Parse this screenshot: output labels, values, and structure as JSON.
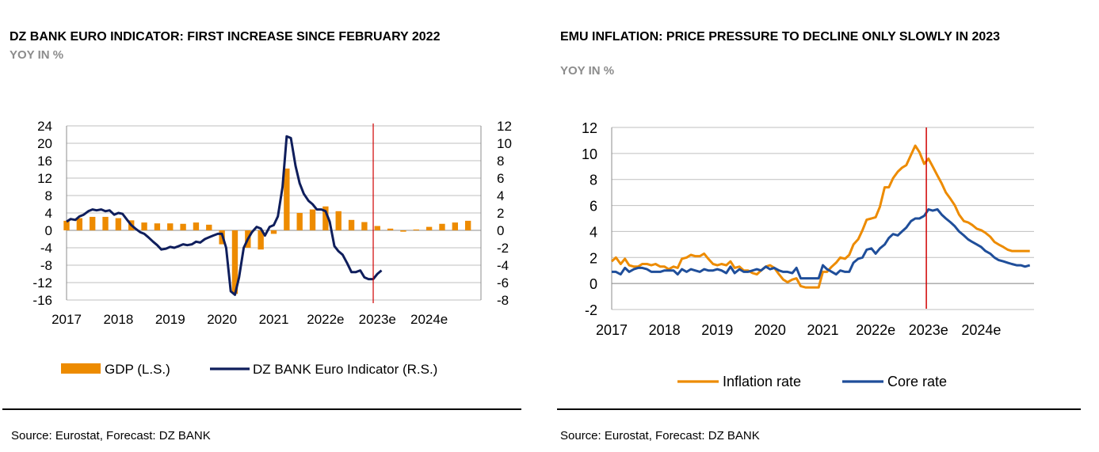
{
  "colors": {
    "orange": "#ED8B00",
    "navy": "#0F1E5C",
    "blue": "#1F4E9A",
    "red": "#D00000",
    "grid": "#BFBFBF"
  },
  "left": {
    "title": "DZ BANK EURO INDICATOR: FIRST INCREASE SINCE FEBRUARY 2022",
    "subtitle": "YOY IN %",
    "source": "Source: Eurostat, Forecast: DZ BANK",
    "legend": {
      "gdp": "GDP (L.S.)",
      "indicator": "DZ BANK Euro Indicator (R.S.)"
    }
  },
  "right": {
    "title": "EMU INFLATION: PRICE PRESSURE TO DECLINE ONLY SLOWLY IN 2023",
    "subtitle": "YOY IN %",
    "source": "Source: Eurostat, Forecast: DZ BANK",
    "legend": {
      "inflation": "Inflation rate",
      "core": "Core rate"
    }
  },
  "chart_data": [
    {
      "type": "bar+line",
      "title": "DZ BANK EURO INDICATOR: FIRST INCREASE SINCE FEBRUARY 2022",
      "subtitle": "YOY IN %",
      "x_tick_labels": [
        "2017",
        "2018",
        "2019",
        "2020",
        "2021",
        "2022e",
        "2023e",
        "2024e"
      ],
      "x_range": [
        2017,
        2025
      ],
      "y_left": {
        "ticks": [
          24,
          20,
          16,
          12,
          8,
          4,
          0,
          -4,
          -8,
          -12,
          -16
        ],
        "range": [
          -16,
          24
        ],
        "label": "GDP (L.S.)"
      },
      "y_right": {
        "ticks": [
          12,
          10,
          8,
          6,
          4,
          2,
          0,
          -2,
          -4,
          -6,
          -8
        ],
        "range": [
          -8,
          12
        ],
        "label": "DZ BANK Euro Indicator (R.S.)"
      },
      "vertical_marker": 2022.92,
      "series": [
        {
          "name": "GDP (L.S.)",
          "kind": "bar",
          "axis": "left",
          "x": [
            2017.0,
            2017.25,
            2017.5,
            2017.75,
            2018.0,
            2018.25,
            2018.5,
            2018.75,
            2019.0,
            2019.25,
            2019.5,
            2019.75,
            2020.0,
            2020.25,
            2020.5,
            2020.75,
            2021.0,
            2021.25,
            2021.5,
            2021.75,
            2022.0,
            2022.25,
            2022.5,
            2022.75,
            2023.0,
            2023.25,
            2023.5,
            2023.75,
            2024.0,
            2024.25,
            2024.5,
            2024.75
          ],
          "values": [
            2.2,
            2.8,
            3.1,
            3.1,
            2.8,
            2.3,
            1.8,
            1.6,
            1.6,
            1.5,
            1.8,
            1.3,
            -3.2,
            -14.6,
            -4.0,
            -4.4,
            -0.8,
            14.2,
            4.0,
            4.8,
            5.5,
            4.4,
            2.4,
            1.9,
            1.0,
            0.4,
            -0.3,
            0.2,
            0.8,
            1.5,
            1.8,
            2.2
          ]
        },
        {
          "name": "DZ BANK Euro Indicator (R.S.)",
          "kind": "line",
          "axis": "right",
          "x": [
            2017.0,
            2017.08,
            2017.17,
            2017.25,
            2017.33,
            2017.42,
            2017.5,
            2017.58,
            2017.67,
            2017.75,
            2017.83,
            2017.92,
            2018.0,
            2018.08,
            2018.17,
            2018.25,
            2018.33,
            2018.42,
            2018.5,
            2018.58,
            2018.67,
            2018.75,
            2018.83,
            2018.92,
            2019.0,
            2019.08,
            2019.17,
            2019.25,
            2019.33,
            2019.42,
            2019.5,
            2019.58,
            2019.67,
            2019.75,
            2019.83,
            2019.92,
            2020.0,
            2020.08,
            2020.17,
            2020.25,
            2020.33,
            2020.42,
            2020.5,
            2020.58,
            2020.67,
            2020.75,
            2020.83,
            2020.92,
            2021.0,
            2021.08,
            2021.17,
            2021.25,
            2021.33,
            2021.42,
            2021.5,
            2021.58,
            2021.67,
            2021.75,
            2021.83,
            2021.92,
            2022.0,
            2022.08,
            2022.17,
            2022.25,
            2022.33,
            2022.42,
            2022.5,
            2022.58,
            2022.67,
            2022.75,
            2022.83,
            2022.92,
            2023.0,
            2023.08
          ],
          "values": [
            1.0,
            1.3,
            1.2,
            1.6,
            1.8,
            2.2,
            2.4,
            2.3,
            2.4,
            2.2,
            2.3,
            1.8,
            2.0,
            1.9,
            1.2,
            0.6,
            0.2,
            -0.2,
            -0.4,
            -0.8,
            -1.3,
            -1.7,
            -2.2,
            -2.1,
            -1.9,
            -2.0,
            -1.8,
            -1.6,
            -1.7,
            -1.6,
            -1.3,
            -1.4,
            -1.0,
            -0.8,
            -0.6,
            -0.4,
            -0.4,
            -2.0,
            -7.0,
            -7.4,
            -5.4,
            -2.0,
            -1.0,
            -0.2,
            0.4,
            0.2,
            -0.6,
            0.4,
            0.6,
            1.6,
            5.0,
            10.8,
            10.6,
            7.4,
            5.4,
            4.2,
            3.4,
            3.0,
            2.4,
            2.4,
            2.2,
            1.0,
            -1.8,
            -2.4,
            -2.8,
            -3.8,
            -4.8,
            -4.8,
            -4.6,
            -5.4,
            -5.6,
            -5.6,
            -5.0,
            -4.6
          ]
        }
      ]
    },
    {
      "type": "line",
      "title": "EMU INFLATION: PRICE PRESSURE TO DECLINE ONLY SLOWLY IN 2023",
      "subtitle": "YOY IN %",
      "x_tick_labels": [
        "2017",
        "2018",
        "2019",
        "2020",
        "2021",
        "2022e",
        "2023e",
        "2024e"
      ],
      "x_range": [
        2017,
        2025
      ],
      "y": {
        "ticks": [
          12,
          10,
          8,
          6,
          4,
          2,
          0,
          -2
        ],
        "range": [
          -2,
          12
        ]
      },
      "vertical_marker": 2022.96,
      "series": [
        {
          "name": "Inflation rate",
          "x": [
            2017.0,
            2017.08,
            2017.17,
            2017.25,
            2017.33,
            2017.42,
            2017.5,
            2017.58,
            2017.67,
            2017.75,
            2017.83,
            2017.92,
            2018.0,
            2018.08,
            2018.17,
            2018.25,
            2018.33,
            2018.42,
            2018.5,
            2018.58,
            2018.67,
            2018.75,
            2018.83,
            2018.92,
            2019.0,
            2019.08,
            2019.17,
            2019.25,
            2019.33,
            2019.42,
            2019.5,
            2019.58,
            2019.67,
            2019.75,
            2019.83,
            2019.92,
            2020.0,
            2020.08,
            2020.17,
            2020.25,
            2020.33,
            2020.42,
            2020.5,
            2020.58,
            2020.67,
            2020.75,
            2020.83,
            2020.92,
            2021.0,
            2021.08,
            2021.17,
            2021.25,
            2021.33,
            2021.42,
            2021.5,
            2021.58,
            2021.67,
            2021.75,
            2021.83,
            2021.92,
            2022.0,
            2022.08,
            2022.17,
            2022.25,
            2022.33,
            2022.42,
            2022.5,
            2022.58,
            2022.67,
            2022.75,
            2022.83,
            2022.92,
            2023.0,
            2023.08,
            2023.17,
            2023.25,
            2023.33,
            2023.42,
            2023.5,
            2023.58,
            2023.67,
            2023.75,
            2023.83,
            2023.92,
            2024.0,
            2024.08,
            2024.17,
            2024.25,
            2024.33,
            2024.42,
            2024.5,
            2024.58,
            2024.67,
            2024.75,
            2024.83,
            2024.92
          ],
          "values": [
            1.7,
            2.0,
            1.5,
            1.9,
            1.4,
            1.3,
            1.3,
            1.5,
            1.5,
            1.4,
            1.5,
            1.3,
            1.3,
            1.1,
            1.3,
            1.2,
            1.9,
            2.0,
            2.2,
            2.1,
            2.1,
            2.3,
            1.9,
            1.5,
            1.4,
            1.5,
            1.4,
            1.7,
            1.2,
            1.3,
            1.0,
            1.0,
            0.8,
            0.7,
            1.0,
            1.3,
            1.4,
            1.2,
            0.7,
            0.3,
            0.1,
            0.3,
            0.4,
            -0.2,
            -0.3,
            -0.3,
            -0.3,
            -0.3,
            0.9,
            0.9,
            1.3,
            1.6,
            2.0,
            1.9,
            2.2,
            3.0,
            3.4,
            4.1,
            4.9,
            5.0,
            5.1,
            5.9,
            7.4,
            7.4,
            8.1,
            8.6,
            8.9,
            9.1,
            9.9,
            10.6,
            10.1,
            9.2,
            9.6,
            9.0,
            8.3,
            7.7,
            7.0,
            6.5,
            6.0,
            5.3,
            4.8,
            4.7,
            4.5,
            4.2,
            4.1,
            3.9,
            3.6,
            3.2,
            3.0,
            2.8,
            2.6,
            2.5,
            2.5,
            2.5,
            2.5,
            2.5
          ]
        },
        {
          "name": "Core rate",
          "x": [
            2017.0,
            2017.08,
            2017.17,
            2017.25,
            2017.33,
            2017.42,
            2017.5,
            2017.58,
            2017.67,
            2017.75,
            2017.83,
            2017.92,
            2018.0,
            2018.08,
            2018.17,
            2018.25,
            2018.33,
            2018.42,
            2018.5,
            2018.58,
            2018.67,
            2018.75,
            2018.83,
            2018.92,
            2019.0,
            2019.08,
            2019.17,
            2019.25,
            2019.33,
            2019.42,
            2019.5,
            2019.58,
            2019.67,
            2019.75,
            2019.83,
            2019.92,
            2020.0,
            2020.08,
            2020.17,
            2020.25,
            2020.33,
            2020.42,
            2020.5,
            2020.58,
            2020.67,
            2020.75,
            2020.83,
            2020.92,
            2021.0,
            2021.08,
            2021.17,
            2021.25,
            2021.33,
            2021.42,
            2021.5,
            2021.58,
            2021.67,
            2021.75,
            2021.83,
            2021.92,
            2022.0,
            2022.08,
            2022.17,
            2022.25,
            2022.33,
            2022.42,
            2022.5,
            2022.58,
            2022.67,
            2022.75,
            2022.83,
            2022.92,
            2023.0,
            2023.08,
            2023.17,
            2023.25,
            2023.33,
            2023.42,
            2023.5,
            2023.58,
            2023.67,
            2023.75,
            2023.83,
            2023.92,
            2024.0,
            2024.08,
            2024.17,
            2024.25,
            2024.33,
            2024.42,
            2024.5,
            2024.58,
            2024.67,
            2024.75,
            2024.83,
            2024.92
          ],
          "values": [
            0.9,
            0.9,
            0.7,
            1.2,
            0.9,
            1.1,
            1.2,
            1.2,
            1.1,
            0.9,
            0.9,
            0.9,
            1.0,
            1.0,
            1.0,
            0.7,
            1.1,
            0.9,
            1.1,
            1.0,
            0.9,
            1.1,
            1.0,
            1.0,
            1.1,
            1.0,
            0.8,
            1.3,
            0.8,
            1.1,
            0.9,
            0.9,
            1.0,
            1.1,
            1.0,
            1.3,
            1.1,
            1.2,
            1.0,
            0.9,
            0.9,
            0.8,
            1.2,
            0.4,
            0.4,
            0.4,
            0.4,
            0.4,
            1.4,
            1.1,
            0.9,
            0.7,
            1.0,
            0.9,
            0.9,
            1.6,
            1.9,
            2.0,
            2.6,
            2.7,
            2.3,
            2.7,
            3.0,
            3.5,
            3.8,
            3.7,
            4.0,
            4.3,
            4.8,
            5.0,
            5.0,
            5.2,
            5.7,
            5.6,
            5.7,
            5.3,
            5.0,
            4.7,
            4.4,
            4.0,
            3.7,
            3.4,
            3.2,
            3.0,
            2.8,
            2.5,
            2.3,
            2.0,
            1.8,
            1.7,
            1.6,
            1.5,
            1.4,
            1.4,
            1.3,
            1.4
          ]
        }
      ]
    }
  ]
}
